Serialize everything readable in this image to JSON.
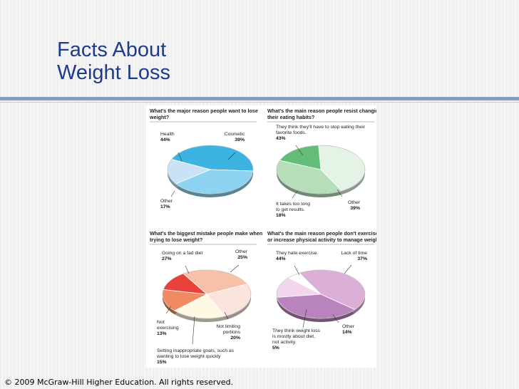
{
  "slide": {
    "title_line1": "Facts About",
    "title_line2": "Weight Loss",
    "copyright": "© 2009 McGraw-Hill Higher Education. All rights reserved."
  },
  "chart_data": [
    {
      "type": "pie",
      "title_lines": [
        "What's the major reason people want to lose",
        "weight?"
      ],
      "slices": [
        {
          "name": "Health",
          "value": 44,
          "color": "#3cb3e0"
        },
        {
          "name": "Cosmetic",
          "value": 39,
          "color": "#8fd3f2"
        },
        {
          "name": "Other",
          "value": 17,
          "color": "#c9e2f6"
        }
      ],
      "labels": [
        {
          "lines": [
            "Health"
          ],
          "pct": "44%"
        },
        {
          "lines": [
            "Cosmetic"
          ],
          "pct": "39%"
        },
        {
          "lines": [
            "Other"
          ],
          "pct": "17%"
        }
      ]
    },
    {
      "type": "pie",
      "title_lines": [
        "What's the main reason people resist changing",
        "their eating habits?"
      ],
      "slices": [
        {
          "name": "They think they'll have to stop eating their favorite foods.",
          "value": 43,
          "color": "#e4f3e6"
        },
        {
          "name": "Other",
          "value": 39,
          "color": "#b5deb9"
        },
        {
          "name": "It takes too long to get results.",
          "value": 18,
          "color": "#63bc78"
        }
      ],
      "labels": [
        {
          "lines": [
            "They think they'll have to stop eating their",
            "favorite foods."
          ],
          "pct": "43%"
        },
        {
          "lines": [
            "Other"
          ],
          "pct": "39%"
        },
        {
          "lines": [
            "It takes too long",
            "to get results."
          ],
          "pct": "18%"
        }
      ]
    },
    {
      "type": "pie",
      "title_lines": [
        "What's the biggest mistake people make when",
        "trying to lose weight?"
      ],
      "slices": [
        {
          "name": "Going on a fad diet",
          "value": 27,
          "color": "#f7c1a8"
        },
        {
          "name": "Other",
          "value": 25,
          "color": "#fbe4dc"
        },
        {
          "name": "Not limiting portions",
          "value": 20,
          "color": "#fff9e4"
        },
        {
          "name": "Setting inappropriate goals, such as wanting to lose weight quickly",
          "value": 15,
          "color": "#f08a62"
        },
        {
          "name": "Not exercising",
          "value": 13,
          "color": "#e8413a"
        }
      ],
      "labels": [
        {
          "lines": [
            "Going on a fad diet"
          ],
          "pct": "27%"
        },
        {
          "lines": [
            "Other"
          ],
          "pct": "25%"
        },
        {
          "lines": [
            "Not limiting",
            "portions"
          ],
          "pct": "20%"
        },
        {
          "lines": [
            "Setting inappropriate goals, such as",
            "wanting to lose weight quickly"
          ],
          "pct": "15%"
        },
        {
          "lines": [
            "Not",
            "exercising"
          ],
          "pct": "13%"
        }
      ]
    },
    {
      "type": "pie",
      "title_lines": [
        "What's the main reason people don't exercise",
        "or increase physical activity to manage weight?"
      ],
      "slices": [
        {
          "name": "They hate exercise.",
          "value": 44,
          "color": "#dcb0d6"
        },
        {
          "name": "Lack of time",
          "value": 37,
          "color": "#b984bd"
        },
        {
          "name": "Other",
          "value": 14,
          "color": "#f4d6ec"
        },
        {
          "name": "They think weight loss is mostly about diet, not activity.",
          "value": 5,
          "color": "#ffffff"
        }
      ],
      "labels": [
        {
          "lines": [
            "They hate exercise."
          ],
          "pct": "44%"
        },
        {
          "lines": [
            "Lack of time"
          ],
          "pct": "37%"
        },
        {
          "lines": [
            "Other"
          ],
          "pct": "14%"
        },
        {
          "lines": [
            "They think weight loss",
            "is mostly about diet,",
            "not activity."
          ],
          "pct": "5%"
        }
      ]
    }
  ]
}
